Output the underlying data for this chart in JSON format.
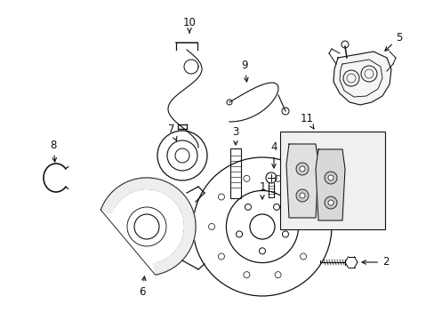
{
  "bg_color": "#ffffff",
  "fig_width": 4.89,
  "fig_height": 3.6,
  "dpi": 100,
  "line_color": "#111111",
  "label_fontsize": 8.5
}
